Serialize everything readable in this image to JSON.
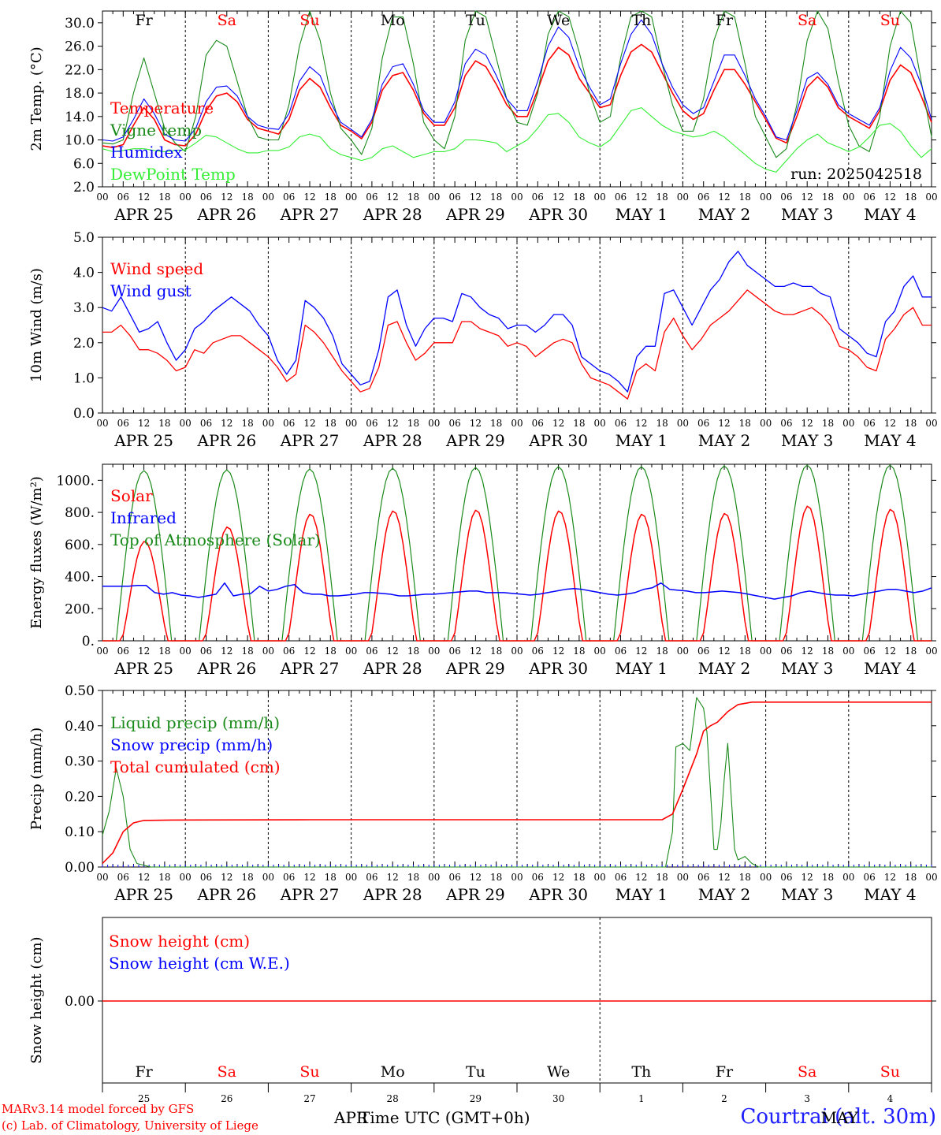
{
  "footer": {
    "credit_line1": "MARv3.14 model forced by GFS",
    "credit_line2": "(c) Lab. of Climatology, University of Liege",
    "x_axis_label": "Time UTC (GMT+0h)",
    "month_overlay": "APR",
    "month_overlay2": "MAY",
    "station": "Courtrai (alt. 30m)"
  },
  "colors": {
    "red": "#ff0000",
    "blue": "#0000ff",
    "darkgreen": "#1a8a1a",
    "lightgreen": "#33ee33",
    "weekend": "#ff0000",
    "weekday": "#000000",
    "station": "#2020ff"
  },
  "chart_data": [
    {
      "type": "line",
      "ylabel": "2m Temp. (°C)",
      "ylim": [
        2,
        32
      ],
      "yticks": [
        "2.0",
        "6.0",
        "10.0",
        "14.0",
        "18.0",
        "22.0",
        "26.0",
        "30.0"
      ],
      "run": "run: 2025042518",
      "days_top": [
        "Fr",
        "Sa",
        "Su",
        "Mo",
        "Tu",
        "We",
        "Th",
        "Fr",
        "Sa",
        "Su"
      ],
      "x_hours_per_day": [
        "00",
        "06",
        "12",
        "18"
      ],
      "date_labels": [
        "APR 25",
        "APR 26",
        "APR 27",
        "APR 28",
        "APR 29",
        "APR 30",
        "MAY  1",
        "MAY  2",
        "MAY  3",
        "MAY  4"
      ],
      "x_hours_start": 0,
      "x_hours_end": 240,
      "x_step_hours": 3,
      "series": [
        {
          "name": "Temperature",
          "color": "red",
          "values": [
            9,
            8.7,
            9.2,
            12.5,
            15.5,
            13.5,
            10,
            9.2,
            9,
            11,
            15,
            17.5,
            18,
            16.5,
            13.5,
            12,
            11.5,
            11,
            13.5,
            18.5,
            20.5,
            19,
            15.5,
            12.5,
            11.5,
            10.2,
            13,
            18.5,
            21,
            21.5,
            18.5,
            14.5,
            12.5,
            12.5,
            15.5,
            21,
            23.5,
            22.5,
            19.5,
            16,
            14,
            14,
            18.5,
            23.5,
            25.8,
            24.5,
            20.5,
            18,
            15.5,
            16,
            21,
            25,
            26.3,
            25,
            21.5,
            18,
            15,
            13.5,
            14.5,
            18.5,
            22,
            22,
            19.5,
            16.5,
            13.5,
            10.3,
            9.5,
            14,
            19,
            20.8,
            19,
            15.5,
            14,
            13,
            12,
            15,
            20.2,
            22.8,
            21.5,
            17.5,
            13
          ]
        },
        {
          "name": "Vigne temp",
          "color": "darkgreen",
          "values": [
            9.5,
            9.3,
            10,
            18,
            24,
            18,
            12,
            9.5,
            8,
            14,
            24.5,
            27,
            26,
            20,
            14,
            10.5,
            10,
            10,
            16,
            26,
            32,
            27,
            18,
            12,
            10,
            7.5,
            12,
            24,
            31,
            31,
            23,
            13,
            10,
            8.5,
            14,
            27,
            32,
            31,
            24,
            17,
            13,
            12.5,
            18,
            28,
            32,
            31,
            25,
            18,
            13,
            14,
            24,
            31,
            32,
            31,
            23,
            16,
            11.5,
            11.5,
            17,
            27,
            32,
            31,
            23,
            14,
            10.5,
            7,
            8.5,
            16,
            27,
            32,
            29,
            20,
            12.5,
            9,
            8,
            14,
            26,
            32,
            30,
            20,
            10.5
          ]
        },
        {
          "name": "Humidex",
          "color": "blue",
          "values": [
            10,
            9.8,
            10.5,
            13.5,
            17,
            14.5,
            11,
            10,
            9.8,
            12,
            16.5,
            19,
            19.2,
            17.5,
            14,
            12.5,
            12,
            11.8,
            14.5,
            20,
            22.5,
            21,
            16.5,
            13,
            11.8,
            10.5,
            13.5,
            19.5,
            22.5,
            23,
            19.5,
            15,
            13,
            13,
            16.5,
            23,
            25.5,
            24.5,
            21,
            17,
            15,
            15,
            20,
            26,
            29.3,
            27.5,
            22.5,
            19,
            16,
            17,
            23,
            28,
            30.5,
            28,
            23,
            19,
            16,
            14.5,
            15.5,
            20,
            24.5,
            24.5,
            21,
            17,
            14,
            10.5,
            10,
            15,
            20.5,
            21.5,
            19.5,
            16,
            14.5,
            13.5,
            12.5,
            15.5,
            21.8,
            25.8,
            24,
            19.5,
            13.5
          ]
        },
        {
          "name": "DewPoint Temp",
          "color": "lightgreen",
          "values": [
            8.5,
            8,
            8.2,
            8.5,
            8.5,
            8.2,
            8,
            8.2,
            8.3,
            9.5,
            10.8,
            10.5,
            9.5,
            8.5,
            7.8,
            7.8,
            8.2,
            8.2,
            8.8,
            10.5,
            11,
            10.5,
            8.5,
            7.5,
            7,
            6.5,
            7,
            8.5,
            9,
            8,
            7,
            7.5,
            8,
            8,
            8.5,
            10,
            10,
            9.8,
            9.5,
            8,
            9,
            10,
            12,
            14.3,
            14.5,
            13,
            10.5,
            9.5,
            8.8,
            10,
            12.5,
            15,
            15.5,
            14,
            12.5,
            11.5,
            11,
            10.5,
            10.8,
            11.5,
            10.5,
            9,
            7.5,
            6,
            5,
            4.5,
            6.5,
            8.5,
            10,
            11,
            9.5,
            8.8,
            8,
            8.8,
            10.5,
            12.5,
            12.8,
            11.5,
            9,
            7,
            8.5
          ]
        }
      ]
    },
    {
      "type": "line",
      "ylabel": "10m Wind (m/s)",
      "ylim": [
        0,
        5
      ],
      "yticks": [
        "0.0",
        "1.0",
        "2.0",
        "3.0",
        "4.0",
        "5.0"
      ],
      "date_labels": [
        "APR 25",
        "APR 26",
        "APR 27",
        "APR 28",
        "APR 29",
        "APR 30",
        "MAY  1",
        "MAY  2",
        "MAY  3",
        "MAY  4"
      ],
      "x_hours_start": 0,
      "x_hours_end": 240,
      "x_step_hours": 3,
      "series": [
        {
          "name": "Wind speed",
          "color": "red",
          "values": [
            2.3,
            2.3,
            2.5,
            2.2,
            1.8,
            1.8,
            1.7,
            1.5,
            1.2,
            1.3,
            1.8,
            1.7,
            2,
            2.1,
            2.2,
            2.2,
            2,
            1.8,
            1.6,
            1.3,
            0.9,
            1.1,
            2.5,
            2.3,
            2,
            1.6,
            1.2,
            0.9,
            0.6,
            0.7,
            1.3,
            2.5,
            2.6,
            2,
            1.5,
            1.7,
            2,
            2,
            2,
            2.6,
            2.6,
            2.4,
            2.3,
            2.2,
            1.9,
            2,
            1.9,
            1.6,
            1.8,
            2,
            2.1,
            2,
            1.4,
            1,
            0.9,
            0.8,
            0.6,
            0.4,
            1.2,
            1.4,
            1.2,
            2.3,
            2.7,
            2.2,
            1.8,
            2.1,
            2.5,
            2.7,
            2.9,
            3.2,
            3.5,
            3.3,
            3.1,
            2.9,
            2.8,
            2.8,
            2.9,
            3,
            2.8,
            2.5,
            1.9,
            1.8,
            1.6,
            1.3,
            1.2,
            2.1,
            2.4,
            2.8,
            3,
            2.5,
            2.5
          ]
        },
        {
          "name": "Wind gust",
          "color": "blue",
          "values": [
            3,
            2.9,
            3.3,
            2.8,
            2.3,
            2.4,
            2.6,
            2,
            1.5,
            1.8,
            2.4,
            2.6,
            2.9,
            3.1,
            3.3,
            3.1,
            2.9,
            2.5,
            2.2,
            1.5,
            1.1,
            1.5,
            3.2,
            3,
            2.7,
            2.2,
            1.4,
            1.1,
            0.8,
            0.9,
            1.8,
            3.3,
            3.5,
            2.5,
            1.9,
            2.4,
            2.7,
            2.7,
            2.6,
            3.4,
            3.3,
            3,
            2.8,
            2.7,
            2.4,
            2.5,
            2.5,
            2.3,
            2.5,
            2.8,
            2.8,
            2.5,
            1.6,
            1.4,
            1.2,
            1.1,
            0.9,
            0.6,
            1.6,
            1.9,
            1.9,
            3.4,
            3.5,
            3,
            2.5,
            3,
            3.5,
            3.8,
            4.3,
            4.6,
            4.2,
            4,
            3.8,
            3.6,
            3.6,
            3.7,
            3.6,
            3.6,
            3.4,
            3.3,
            2.4,
            2.2,
            2,
            1.7,
            1.6,
            2.6,
            2.9,
            3.6,
            3.9,
            3.3,
            3.3
          ]
        }
      ]
    },
    {
      "type": "line",
      "ylabel": "Energy fluxes (W/m²)",
      "ylim": [
        0,
        1100
      ],
      "yticks": [
        "0.",
        "200.",
        "400.",
        "600.",
        "800.",
        "1000."
      ],
      "date_labels": [
        "APR 25",
        "APR 26",
        "APR 27",
        "APR 28",
        "APR 29",
        "APR 30",
        "MAY  1",
        "MAY  2",
        "MAY  3",
        "MAY  4"
      ],
      "solar_peaks": [
        620,
        710,
        790,
        810,
        815,
        810,
        790,
        795,
        840,
        820
      ],
      "toa_peaks": [
        1060,
        1065,
        1070,
        1075,
        1080,
        1085,
        1085,
        1090,
        1095,
        1095
      ],
      "infrared_values": [
        340,
        340,
        340,
        340,
        345,
        345,
        300,
        290,
        300,
        285,
        280,
        270,
        280,
        290,
        360,
        280,
        290,
        295,
        340,
        310,
        320,
        340,
        350,
        300,
        290,
        290,
        280,
        280,
        285,
        290,
        300,
        300,
        295,
        290,
        280,
        280,
        285,
        290,
        290,
        295,
        300,
        305,
        310,
        310,
        300,
        300,
        300,
        295,
        290,
        285,
        290,
        300,
        310,
        320,
        325,
        320,
        310,
        300,
        290,
        285,
        290,
        300,
        320,
        330,
        360,
        320,
        315,
        310,
        300,
        300,
        305,
        310,
        305,
        300,
        290,
        280,
        270,
        260,
        270,
        280,
        300,
        310,
        300,
        290,
        285,
        285,
        280,
        290,
        300,
        310,
        320,
        320,
        310,
        300,
        310,
        330
      ],
      "series": [
        {
          "name": "Solar",
          "color": "red"
        },
        {
          "name": "Infrared",
          "color": "blue"
        },
        {
          "name": "Top of Atmosphere (Solar)",
          "color": "darkgreen"
        }
      ]
    },
    {
      "type": "line",
      "ylabel": "Precip (mm/h)",
      "ylim": [
        0,
        0.5
      ],
      "yticks": [
        "0.00",
        "0.10",
        "0.20",
        "0.30",
        "0.40",
        "0.50"
      ],
      "date_labels": [
        "APR 25",
        "APR 26",
        "APR 27",
        "APR 28",
        "APR 29",
        "APR 30",
        "MAY  1",
        "MAY  2",
        "MAY  3",
        "MAY  4"
      ],
      "liquid_points": [
        [
          0,
          0.09
        ],
        [
          2,
          0.16
        ],
        [
          4,
          0.28
        ],
        [
          6,
          0.2
        ],
        [
          8,
          0.05
        ],
        [
          10,
          0.01
        ],
        [
          14,
          0.0
        ],
        [
          150,
          0
        ],
        [
          163,
          0.0
        ],
        [
          165,
          0.1
        ],
        [
          166,
          0.34
        ],
        [
          168,
          0.35
        ],
        [
          170,
          0.33
        ],
        [
          172,
          0.48
        ],
        [
          174,
          0.45
        ],
        [
          175,
          0.38
        ],
        [
          177,
          0.05
        ],
        [
          178,
          0.05
        ],
        [
          179,
          0.12
        ],
        [
          180,
          0.25
        ],
        [
          181,
          0.35
        ],
        [
          182,
          0.2
        ],
        [
          183,
          0.05
        ],
        [
          184,
          0.02
        ],
        [
          186,
          0.03
        ],
        [
          188,
          0.01
        ],
        [
          190,
          0.0
        ],
        [
          240,
          0
        ]
      ],
      "total_points": [
        [
          0,
          0.01
        ],
        [
          3,
          0.04
        ],
        [
          6,
          0.1
        ],
        [
          9,
          0.125
        ],
        [
          12,
          0.132
        ],
        [
          20,
          0.133
        ],
        [
          60,
          0.134
        ],
        [
          162,
          0.134
        ],
        [
          165,
          0.15
        ],
        [
          168,
          0.22
        ],
        [
          172,
          0.32
        ],
        [
          174,
          0.385
        ],
        [
          176,
          0.4
        ],
        [
          178,
          0.41
        ],
        [
          181,
          0.44
        ],
        [
          184,
          0.46
        ],
        [
          188,
          0.467
        ],
        [
          240,
          0.467
        ]
      ],
      "series": [
        {
          "name": "Liquid precip (mm/h)",
          "color": "darkgreen"
        },
        {
          "name": "Snow precip (mm/h)",
          "color": "blue"
        },
        {
          "name": "Total cumulated (cm)",
          "color": "red"
        }
      ]
    },
    {
      "type": "line",
      "ylabel": "Snow height (cm)",
      "yticks": [
        "0.00"
      ],
      "value": 0,
      "days_bottom": [
        "Fr",
        "Sa",
        "Su",
        "Mo",
        "Tu",
        "We",
        "Th",
        "Fr",
        "Sa",
        "Su"
      ],
      "day_numbers": [
        "25",
        "26",
        "27",
        "28",
        "29",
        "30",
        "1",
        "2",
        "3",
        "4"
      ],
      "series": [
        {
          "name": "Snow height (cm)",
          "color": "red"
        },
        {
          "name": "Snow height (cm W.E.)",
          "color": "blue"
        }
      ]
    }
  ]
}
